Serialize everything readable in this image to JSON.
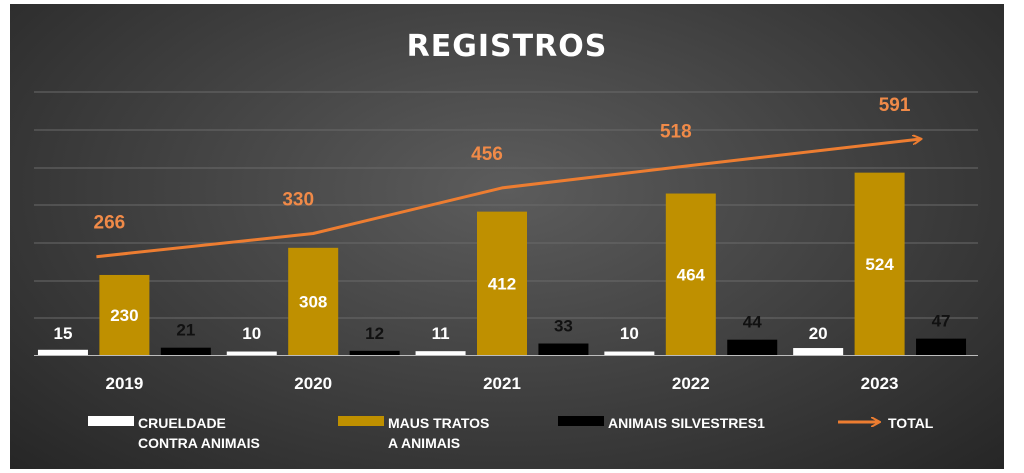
{
  "chart_data": {
    "type": "bar",
    "title": "REGISTROS",
    "categories": [
      "2019",
      "2020",
      "2021",
      "2022",
      "2023"
    ],
    "series": [
      {
        "name": "CRUELDADE CONTRA ANIMAIS",
        "legend_lines": [
          "CRUELDADE",
          "CONTRA ANIMAIS"
        ],
        "color": "#ffffff",
        "values": [
          15,
          10,
          11,
          10,
          20
        ]
      },
      {
        "name": "MAUS TRATOS A ANIMAIS",
        "legend_lines": [
          "MAUS TRATOS",
          "A ANIMAIS"
        ],
        "color": "#bf9000",
        "values": [
          230,
          308,
          412,
          464,
          524
        ]
      },
      {
        "name": "ANIMAIS SILVESTRES1",
        "legend_lines": [
          "ANIMAIS SILVESTRES1"
        ],
        "color": "#000000",
        "values": [
          21,
          12,
          33,
          44,
          47
        ]
      }
    ],
    "total": {
      "name": "TOTAL",
      "legend_lines": [
        "TOTAL"
      ],
      "type": "line",
      "color": "#ed7d31",
      "values": [
        266,
        330,
        456,
        518,
        591
      ]
    },
    "ylim": [
      0,
      650
    ],
    "grid": true,
    "legend": "bottom"
  }
}
